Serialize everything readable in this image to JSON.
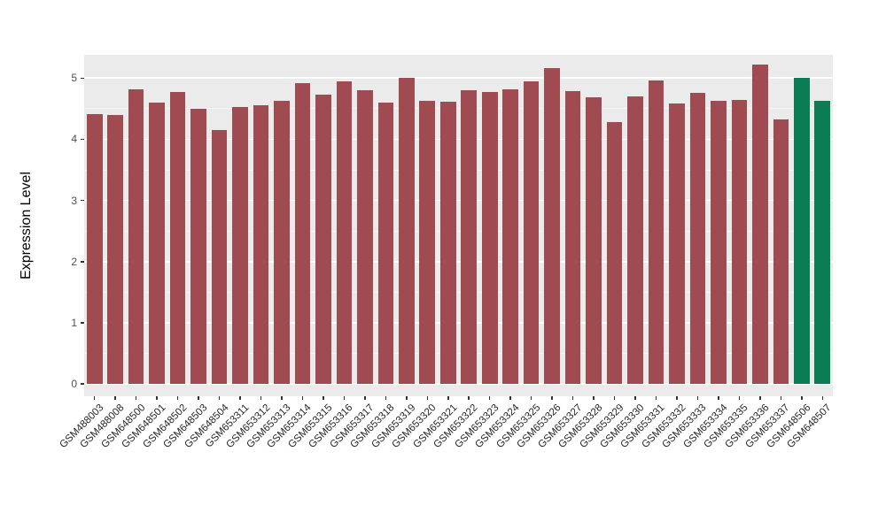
{
  "chart_data": {
    "type": "bar",
    "title": "",
    "xlabel": "",
    "ylabel": "Expression Level",
    "ylim": [
      0,
      5.38
    ],
    "yticks": [
      0,
      1,
      2,
      3,
      4,
      5
    ],
    "grid": true,
    "legend_position": "none",
    "panel_background": "#EBEBEB",
    "gridline_color": "#FFFFFF",
    "bar_color": "#A04A52",
    "highlight_color": "#0B7D55",
    "highlight_categories": [
      "GSM648506",
      "GSM648507"
    ],
    "categories": [
      "GSM488003",
      "GSM488008",
      "GSM648500",
      "GSM648501",
      "GSM648502",
      "GSM648503",
      "GSM648504",
      "GSM653311",
      "GSM653312",
      "GSM653313",
      "GSM653314",
      "GSM653315",
      "GSM653316",
      "GSM653317",
      "GSM653318",
      "GSM653319",
      "GSM653320",
      "GSM653321",
      "GSM653322",
      "GSM653323",
      "GSM653324",
      "GSM653325",
      "GSM653326",
      "GSM653327",
      "GSM653328",
      "GSM653329",
      "GSM653330",
      "GSM653331",
      "GSM653332",
      "GSM653333",
      "GSM653334",
      "GSM653335",
      "GSM653336",
      "GSM653337",
      "GSM648506",
      "GSM648507"
    ],
    "values": [
      4.41,
      4.4,
      4.82,
      4.6,
      4.77,
      4.5,
      4.15,
      4.52,
      4.55,
      4.63,
      4.92,
      4.73,
      4.95,
      4.8,
      4.6,
      5.01,
      4.63,
      4.61,
      4.8,
      4.77,
      4.82,
      4.95,
      5.17,
      4.79,
      4.68,
      4.28,
      4.7,
      4.96,
      4.58,
      4.76,
      4.63,
      4.64,
      5.22,
      4.33,
      5.0,
      4.63
    ]
  }
}
